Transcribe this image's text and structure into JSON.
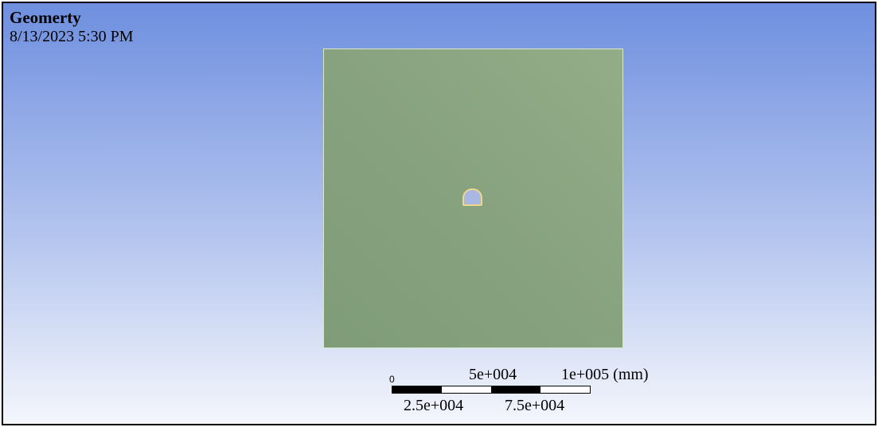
{
  "header": {
    "title": "Geomerty",
    "timestamp": "8/13/2023 5:30 PM"
  },
  "scale": {
    "zero": "0",
    "label_50k": "5e+004",
    "label_100k": "1e+005 (mm)",
    "label_25k": "2.5e+004",
    "label_75k": "7.5e+004"
  },
  "colors": {
    "background_top": "#6e8fdf",
    "background_bottom": "#f4f6fc",
    "body_fill": "#87a27f",
    "hole_edge": "#f0d68a"
  }
}
